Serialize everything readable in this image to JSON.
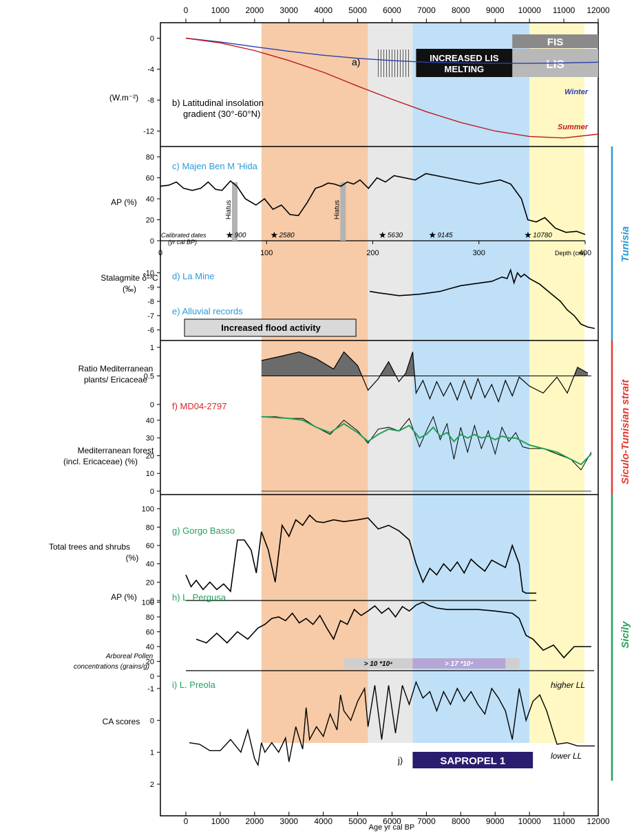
{
  "figure": {
    "axis_title_bottom": "Age yr cal BP",
    "age_ticks": [
      0,
      1000,
      2000,
      3000,
      4000,
      5000,
      6000,
      7000,
      8000,
      9000,
      10000,
      11000,
      12000
    ],
    "region_labels": {
      "tunisia": "Tunisia",
      "strait": "Siculo-Tunisian strait",
      "sicily": "Sicily"
    },
    "colors": {
      "orange_band": "#f7cba7",
      "grey_band": "#e8e8e8",
      "blue_band": "#bfe0f7",
      "yellow_band": "#fff8c2",
      "tunisia": "#2a9bd6",
      "strait": "#e2382f",
      "sicily": "#23a05a",
      "blue_text": "#2a9bd6",
      "red_text": "#d8262a",
      "green_text": "#23a05a"
    }
  },
  "chart_data": [
    {
      "type": "line",
      "panel": "a-b",
      "annotation_a": "a)",
      "label_b": "b) Latitudinal insolation gradient (30°-60°N)",
      "label_b_line1": "b) Latitudinal insolation",
      "label_b_line2": "gradient (30°-60°N)",
      "ylabel": "(W.m⁻²)",
      "ylim": [
        -14,
        2
      ],
      "y_ticks": [
        0,
        -4,
        -8,
        -12
      ],
      "boxes": [
        {
          "label": "FIS",
          "start": 9500,
          "end": 12000
        },
        {
          "label": "LIS",
          "start": 9500,
          "end": 12000
        },
        {
          "label": "INCREASED LIS MELTING",
          "label_line1": "INCREASED LIS",
          "label_line2": "MELTING",
          "start": 6700,
          "end": 9500
        }
      ],
      "series": [
        {
          "name": "Winter",
          "x": [
            0,
            1000,
            2000,
            3000,
            4000,
            5000,
            6000,
            7000,
            8000,
            9000,
            10000,
            11000,
            12000
          ],
          "values": [
            0,
            -0.5,
            -1.1,
            -1.7,
            -2.2,
            -2.6,
            -2.9,
            -3.1,
            -3.2,
            -3.25,
            -3.25,
            -3.2,
            -3.1
          ]
        },
        {
          "name": "Summer",
          "x": [
            0,
            1000,
            2000,
            3000,
            4000,
            5000,
            6000,
            7000,
            8000,
            9000,
            10000,
            11000,
            12000
          ],
          "values": [
            0,
            -0.6,
            -1.6,
            -2.9,
            -4.4,
            -6.2,
            -7.9,
            -9.5,
            -10.9,
            -12.0,
            -12.7,
            -12.9,
            -12.4
          ]
        }
      ]
    },
    {
      "type": "line",
      "panel": "c",
      "label": "c) Majen Ben M 'Hida",
      "ylabel": "AP (%)",
      "ylim": [
        0,
        80
      ],
      "y_ticks": [
        0,
        20,
        40,
        60,
        80
      ],
      "depth_axis_label": "Depth (cm)",
      "depth_ticks": [
        0,
        100,
        200,
        300,
        400
      ],
      "hiatus_label": "Hiatus",
      "hiatus_depths": [
        70,
        172
      ],
      "dates_label_line1": "Calibrated dates",
      "dates_label_line2": "(yr cal BP)",
      "calibrated_dates": [
        {
          "label": "900",
          "depth": 64
        },
        {
          "label": "2580",
          "depth": 106
        },
        {
          "label": "5630",
          "depth": 208
        },
        {
          "label": "9145",
          "depth": 255
        },
        {
          "label": "10780",
          "depth": 345
        }
      ],
      "x": [
        0,
        8,
        15,
        22,
        30,
        38,
        45,
        52,
        58,
        66,
        72,
        80,
        90,
        98,
        106,
        114,
        122,
        130,
        138,
        146,
        152,
        158,
        164,
        170,
        176,
        182,
        188,
        196,
        204,
        212,
        220,
        230,
        240,
        250,
        260,
        270,
        280,
        290,
        300,
        310,
        320,
        330,
        340,
        346,
        354,
        362,
        372,
        382,
        392,
        400
      ],
      "values": [
        52,
        53,
        56,
        50,
        48,
        50,
        56,
        49,
        48,
        57,
        52,
        40,
        34,
        40,
        30,
        34,
        25,
        24,
        36,
        50,
        52,
        55,
        54,
        52,
        56,
        54,
        58,
        50,
        60,
        56,
        62,
        60,
        58,
        64,
        62,
        60,
        58,
        56,
        54,
        56,
        58,
        54,
        40,
        20,
        18,
        22,
        12,
        8,
        9,
        6
      ]
    },
    {
      "type": "line",
      "panel": "d-e",
      "label_d": "d) La Mine",
      "label_e": "e) Alluvial records",
      "ylabel": "Stalagmite δ¹³C (‰)",
      "ylabel_line1": "Stalagmite δ¹³C",
      "ylabel_line2": "(‰)",
      "ylim": [
        -5.5,
        -10.8
      ],
      "y_ticks": [
        -10,
        -9,
        -8,
        -7,
        -6
      ],
      "flood_box": {
        "label": "Increased flood activity",
        "start": 0,
        "end": 4950
      },
      "x": [
        5350,
        5600,
        5900,
        6200,
        6500,
        6800,
        7100,
        7400,
        7700,
        8000,
        8300,
        8600,
        8900,
        9200,
        9350,
        9450,
        9550,
        9650,
        9750,
        9850,
        10000,
        10300,
        10600,
        10900,
        11100,
        11300,
        11500,
        11700,
        11900
      ],
      "values": [
        -8.7,
        -8.6,
        -8.5,
        -8.4,
        -8.45,
        -8.5,
        -8.6,
        -8.7,
        -8.9,
        -9.1,
        -9.2,
        -9.3,
        -9.4,
        -9.7,
        -9.6,
        -10.2,
        -9.3,
        -10.0,
        -9.7,
        -9.9,
        -9.6,
        -9.2,
        -8.6,
        -8.0,
        -7.4,
        -7.0,
        -6.4,
        -6.2,
        -6.1
      ]
    },
    {
      "type": "area",
      "panel": "f-ratio",
      "label": "f) MD04-2797",
      "ylabel": "Ratio Mediterranean plants/ Ericaceae",
      "ylabel_line1": "Ratio Mediterranean",
      "ylabel_line2": "plants/ Ericaceae",
      "ylim": [
        0,
        1
      ],
      "y_ticks": [
        0,
        0.5,
        1
      ],
      "baseline": 0.5,
      "x": [
        2200,
        2800,
        3300,
        3800,
        4300,
        4600,
        5000,
        5300,
        5600,
        5900,
        6200,
        6400,
        6600,
        6700,
        6900,
        7100,
        7300,
        7500,
        7700,
        7900,
        8100,
        8300,
        8500,
        8700,
        8900,
        9100,
        9300,
        9500,
        9700,
        10000,
        10400,
        10800,
        11100,
        11400,
        11700
      ],
      "values": [
        0.77,
        0.85,
        0.92,
        0.8,
        0.62,
        0.92,
        0.68,
        0.25,
        0.45,
        0.75,
        0.4,
        0.55,
        0.92,
        0.2,
        0.42,
        0.1,
        0.4,
        0.15,
        0.38,
        0.08,
        0.42,
        0.1,
        0.45,
        0.12,
        0.35,
        0.05,
        0.42,
        0.15,
        0.48,
        0.32,
        0.2,
        0.48,
        0.2,
        0.65,
        0.55
      ]
    },
    {
      "type": "line",
      "panel": "f-forest",
      "ylabel": "Mediterranean forest (incl. Ericaceae) (%)",
      "ylabel_line1": "Mediterranean forest",
      "ylabel_line2": "(incl. Ericaceae) (%)",
      "ylim": [
        0,
        45
      ],
      "y_ticks": [
        0,
        10,
        20,
        30,
        40
      ],
      "series": [
        {
          "name": "",
          "x": [
            2200,
            2600,
            3000,
            3400,
            3800,
            4200,
            4600,
            5000,
            5300,
            5600,
            5900,
            6200,
            6500,
            6800,
            7000,
            7200,
            7400,
            7600,
            7800,
            8000,
            8200,
            8400,
            8600,
            8800,
            9000,
            9200,
            9400,
            9600,
            9800,
            10000,
            10400,
            10800,
            11200,
            11500,
            11800
          ],
          "values": [
            42,
            42,
            41,
            41,
            36,
            32,
            40,
            34,
            27,
            35,
            36,
            34,
            41,
            25,
            34,
            42,
            29,
            38,
            18,
            36,
            22,
            37,
            24,
            34,
            21,
            36,
            28,
            33,
            25,
            24,
            24,
            21,
            18,
            12,
            22
          ]
        },
        {
          "name": "",
          "x": [
            2200,
            2600,
            3000,
            3400,
            3800,
            4200,
            4600,
            5000,
            5300,
            5600,
            5900,
            6200,
            6500,
            6800,
            7000,
            7200,
            7400,
            7600,
            7800,
            8000,
            8200,
            8400,
            8600,
            8800,
            9000,
            9200,
            9400,
            9600,
            9800,
            10000,
            10400,
            10800,
            11200,
            11500,
            11800
          ],
          "values": [
            42,
            41.5,
            41,
            40,
            36,
            33,
            38,
            33,
            28,
            32,
            35,
            34,
            37,
            30,
            32,
            36,
            31,
            33,
            28,
            32,
            30,
            32,
            30,
            31,
            29,
            31,
            30,
            30,
            28,
            26,
            24,
            22,
            18,
            15,
            21
          ]
        }
      ]
    },
    {
      "type": "line",
      "panel": "g",
      "label": "g) Gorgo Basso",
      "ylabel": "Total trees and shrubs (%)",
      "ylabel_line1": "Total trees and shrubs",
      "ylabel_line2": "(%)",
      "ylim": [
        0,
        105
      ],
      "y_ticks": [
        0,
        20,
        40,
        60,
        80,
        100
      ],
      "x": [
        0,
        150,
        300,
        500,
        700,
        900,
        1100,
        1300,
        1500,
        1700,
        1900,
        2050,
        2200,
        2400,
        2600,
        2800,
        3000,
        3200,
        3400,
        3600,
        3800,
        4000,
        4300,
        4600,
        5000,
        5300,
        5600,
        5900,
        6200,
        6500,
        6700,
        6900,
        7100,
        7300,
        7500,
        7700,
        7900,
        8100,
        8300,
        8500,
        8700,
        8900,
        9100,
        9300,
        9500,
        9700,
        9800,
        9900,
        10000,
        10200
      ],
      "values": [
        28,
        15,
        22,
        12,
        20,
        12,
        18,
        10,
        66,
        66,
        55,
        30,
        75,
        55,
        20,
        82,
        70,
        88,
        82,
        93,
        86,
        85,
        88,
        86,
        88,
        90,
        78,
        82,
        76,
        66,
        40,
        20,
        35,
        28,
        40,
        32,
        42,
        30,
        45,
        38,
        32,
        44,
        40,
        36,
        60,
        40,
        10,
        8,
        8,
        8
      ]
    },
    {
      "type": "line",
      "panel": "h",
      "label": "h) L. Pergusa",
      "ylabel": "AP (%)",
      "ylim": [
        0,
        105
      ],
      "y_ticks": [
        0,
        20,
        40,
        60,
        80,
        100
      ],
      "concentration_label_line1": "Arboreal Pollen",
      "concentration_label_line2": "concentrations (grains/g)",
      "concentration_boxes": [
        {
          "label": "> 10 *10⁴",
          "start": 4600,
          "end": 6600
        },
        {
          "label": "> 17 *10⁴",
          "start": 6600,
          "end": 9700
        }
      ],
      "x": [
        300,
        600,
        900,
        1200,
        1500,
        1800,
        2100,
        2300,
        2500,
        2700,
        2900,
        3100,
        3300,
        3500,
        3700,
        3900,
        4100,
        4300,
        4500,
        4700,
        4900,
        5100,
        5300,
        5500,
        5700,
        5900,
        6100,
        6300,
        6500,
        6700,
        6900,
        7100,
        7300,
        7600,
        8000,
        8500,
        9000,
        9500,
        9700,
        9900,
        10100,
        10400,
        10700,
        11000,
        11300,
        11600,
        11800
      ],
      "values": [
        50,
        45,
        58,
        45,
        60,
        50,
        65,
        70,
        78,
        80,
        75,
        85,
        72,
        78,
        70,
        82,
        65,
        50,
        75,
        70,
        90,
        82,
        88,
        95,
        85,
        92,
        80,
        94,
        88,
        96,
        100,
        95,
        92,
        90,
        90,
        90,
        88,
        85,
        78,
        55,
        50,
        35,
        42,
        25,
        40,
        40,
        40
      ]
    },
    {
      "type": "line",
      "panel": "i-j",
      "label": "i) L. Preola",
      "ylabel": "CA scores",
      "ylim": [
        2,
        -1.3
      ],
      "y_ticks": [
        -1,
        0,
        1,
        2
      ],
      "higher_label": "higher LL",
      "lower_label": "lower LL",
      "sapropel": {
        "tag": "j)",
        "label": "SAPROPEL 1",
        "start": 6600,
        "end": 10100
      },
      "x": [
        100,
        400,
        700,
        1000,
        1300,
        1600,
        1800,
        2000,
        2100,
        2200,
        2300,
        2500,
        2700,
        2900,
        3000,
        3200,
        3400,
        3500,
        3600,
        3800,
        4000,
        4200,
        4400,
        4500,
        4600,
        4800,
        5000,
        5200,
        5300,
        5500,
        5700,
        5900,
        6100,
        6300,
        6500,
        6700,
        6900,
        7100,
        7300,
        7500,
        7700,
        7900,
        8100,
        8300,
        8500,
        8700,
        8900,
        9100,
        9300,
        9500,
        9700,
        9900,
        10100,
        10300,
        10500,
        10800,
        11100,
        11400,
        11700,
        11900
      ],
      "values": [
        0.7,
        0.75,
        0.95,
        0.95,
        0.6,
        1.0,
        0.3,
        1.2,
        1.4,
        0.7,
        1.0,
        0.7,
        1.0,
        0.55,
        1.3,
        0.2,
        0.9,
        -0.4,
        0.6,
        0.2,
        0.5,
        -0.2,
        0.3,
        -0.8,
        -0.3,
        0.0,
        -0.6,
        -1.0,
        0.2,
        -1.1,
        0.6,
        -1.1,
        0.4,
        -1.1,
        -0.5,
        -1.2,
        -0.7,
        -0.9,
        -0.3,
        -0.9,
        -0.5,
        -1.0,
        -0.6,
        -0.9,
        -0.5,
        -0.2,
        -1.0,
        -0.7,
        -0.3,
        0.6,
        -1.0,
        0.0,
        -0.6,
        -0.8,
        -0.3,
        0.75,
        0.7,
        0.8,
        0.8,
        0.8
      ]
    }
  ]
}
